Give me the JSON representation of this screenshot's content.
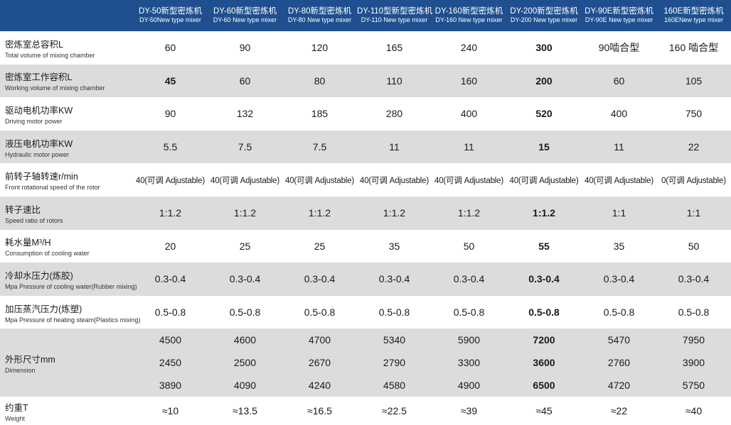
{
  "header": {
    "models": [
      {
        "cn": "DY-50新型密炼机",
        "en": "DY-50New type mixer"
      },
      {
        "cn": "DY-60新型密炼机",
        "en": "DY-60 New type mixer"
      },
      {
        "cn": "DY-80新型密炼机",
        "en": "DY-80 New type mixer"
      },
      {
        "cn": "DY-110型新型密炼机",
        "en": "DY-110 New type mixer"
      },
      {
        "cn": "DY-160新型密炼机",
        "en": "DY-160 New type mixer"
      },
      {
        "cn": "DY-200新型密炼机",
        "en": "DY-200 New type mixer"
      },
      {
        "cn": "DY-90E新型密炼机",
        "en": "DY-90E New type mixer"
      },
      {
        "cn": "160E新型密炼机",
        "en": "160ENew type mixer"
      }
    ]
  },
  "rows": [
    {
      "cn": "密炼室总容积L",
      "en": "Total volume of mixing chamber",
      "values": [
        "60",
        "90",
        "120",
        "165",
        "240",
        "300",
        "90啮合型",
        "160 啮合型"
      ]
    },
    {
      "cn": "密炼室工作容积L",
      "en": "Working volume of mixing chamber",
      "values": [
        "45",
        "60",
        "80",
        "110",
        "160",
        "200",
        "60",
        "105"
      ]
    },
    {
      "cn": "驱动电机功率KW",
      "en": "Driving motor power",
      "values": [
        "90",
        "132",
        "185",
        "280",
        "400",
        "520",
        "400",
        "750"
      ]
    },
    {
      "cn": "液压电机功率KW",
      "en": "Hydraulic motor power",
      "values": [
        "5.5",
        "7.5",
        "7.5",
        "11",
        "11",
        "15",
        "11",
        "22"
      ]
    },
    {
      "cn": "前转子轴转速r/min",
      "en": "Front rotational speed of the rotor",
      "values": [
        "40(可调 Adjustable)",
        "40(可调 Adjustable)",
        "40(可调 Adjustable)",
        "40(可调 Adjustable)",
        "40(可调 Adjustable)",
        "40(可调 Adjustable)",
        "40(可调 Adjustable)",
        "0(可调 Adjustable)"
      ]
    },
    {
      "cn": "转子速比",
      "en": "Speed ratio of rotors",
      "values": [
        "1:1.2",
        "1:1.2",
        "1:1.2",
        "1:1.2",
        "1:1.2",
        "1:1.2",
        "1:1",
        "1:1"
      ]
    },
    {
      "cn": "耗水量M³/H",
      "en": "Consumption of cooling water",
      "values": [
        "20",
        "25",
        "25",
        "35",
        "50",
        "55",
        "35",
        "50"
      ]
    },
    {
      "cn": "冷却水压力(炼胶)",
      "en": "Mpa Pressure of cooling water(Rubber mixing)",
      "values": [
        "0.3-0.4",
        "0.3-0.4",
        "0.3-0.4",
        "0.3-0.4",
        "0.3-0.4",
        "0.3-0.4",
        "0.3-0.4",
        "0.3-0.4"
      ]
    },
    {
      "cn": "加压蒸汽压力(炼塑)",
      "en": "Mpa Pressure of heating steam(Plastics mixing)",
      "values": [
        "0.5-0.8",
        "0.5-0.8",
        "0.5-0.8",
        "0.5-0.8",
        "0.5-0.8",
        "0.5-0.8",
        "0.5-0.8",
        "0.5-0.8"
      ]
    }
  ],
  "dimension": {
    "cn": "外形尺寸mm",
    "en": "Dimension",
    "values": [
      [
        "4500",
        "2450",
        "3890"
      ],
      [
        "4600",
        "2500",
        "4090"
      ],
      [
        "4700",
        "2670",
        "4240"
      ],
      [
        "5340",
        "2790",
        "4580"
      ],
      [
        "5900",
        "3300",
        "4900"
      ],
      [
        "7200",
        "3600",
        "6500"
      ],
      [
        "5470",
        "2760",
        "4720"
      ],
      [
        "7950",
        "3900",
        "5750"
      ]
    ]
  },
  "weight": {
    "cn": "约重T",
    "en": "Weight",
    "values": [
      "≈10",
      "≈13.5",
      "≈16.5",
      "≈22.5",
      "≈39",
      "≈45",
      "≈22",
      "≈40"
    ]
  }
}
